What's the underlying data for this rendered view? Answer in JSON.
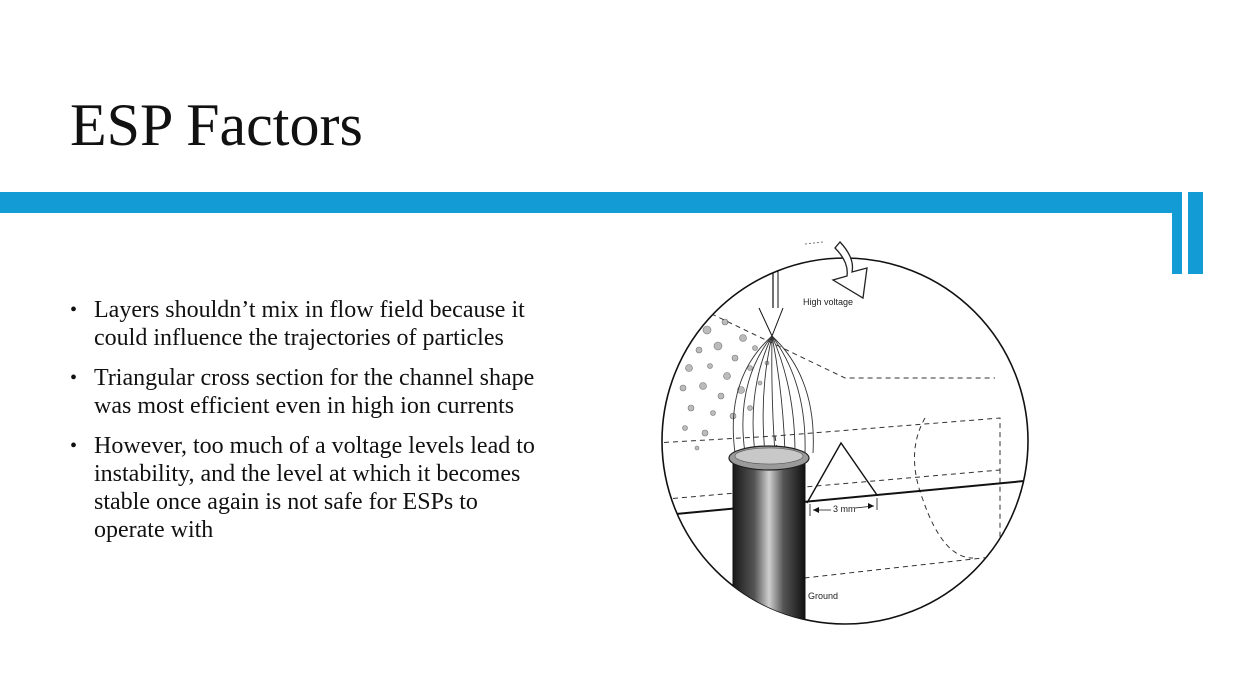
{
  "slide": {
    "title": "ESP Factors",
    "bullets": [
      "Layers shouldn’t mix in flow field because it could influence the trajectories of particles",
      "Triangular cross section for the channel shape was most efficient even in high ion currents",
      "However, too much of  a voltage levels lead to instability, and the level at which it becomes stable once again is not safe for ESPs to operate with"
    ]
  },
  "figure": {
    "labels": {
      "high_voltage": "High voltage",
      "distance": "3 mm",
      "ground": "Ground"
    }
  },
  "colors": {
    "accent": "#139bd6",
    "text": "#111111"
  }
}
